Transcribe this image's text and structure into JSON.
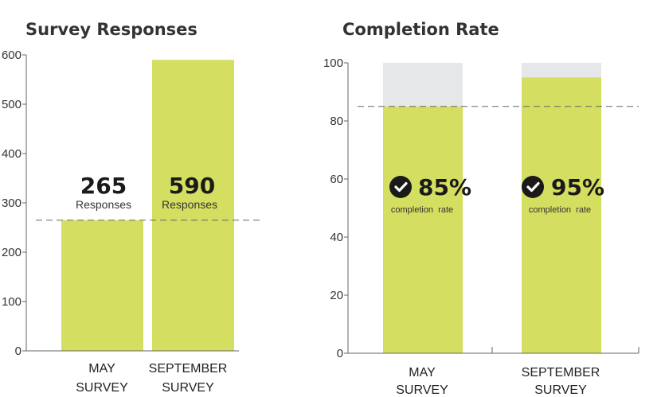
{
  "colors": {
    "bar": "#d4de60",
    "remainder": "#e6e7e8",
    "check": "#1a1a1a"
  },
  "chart_data": [
    {
      "type": "bar",
      "title": "Survey Responses",
      "categories": [
        [
          "MAY",
          "SURVEY"
        ],
        [
          "SEPTEMBER",
          "SURVEY"
        ]
      ],
      "values": [
        265,
        590
      ],
      "value_labels": [
        "265",
        "590"
      ],
      "value_unit": "Responses",
      "ylim": [
        0,
        600
      ],
      "yticks": [
        0,
        100,
        200,
        300,
        400,
        500,
        600
      ],
      "reference_line": 265,
      "grid": false
    },
    {
      "type": "bar",
      "title": "Completion Rate",
      "categories": [
        [
          "MAY",
          "SURVEY"
        ],
        [
          "SEPTEMBER",
          "SURVEY"
        ]
      ],
      "values": [
        85,
        95
      ],
      "max": 100,
      "value_labels": [
        "85%",
        "95%"
      ],
      "value_unit": "completion  rate",
      "badge_icon": "check-circle-icon",
      "ylim": [
        0,
        100
      ],
      "yticks": [
        0,
        20,
        40,
        60,
        80,
        100
      ],
      "reference_line": 85,
      "grid": false
    }
  ]
}
